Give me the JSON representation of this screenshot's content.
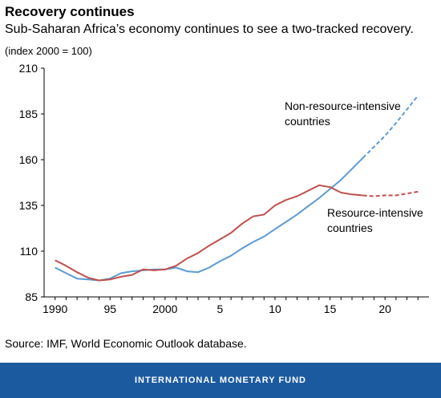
{
  "header": {
    "title": "Recovery continues",
    "subtitle": "Sub-Saharan Africa’s economy continues to see a two-tracked recovery.",
    "units": "(index 2000 = 100)"
  },
  "source": "Source: IMF, World Economic Outlook database.",
  "footer": "INTERNATIONAL MONETARY FUND",
  "chart_data": {
    "type": "line",
    "xlim": [
      1990,
      2023
    ],
    "ylim": [
      85,
      210
    ],
    "x_ticks": [
      1990,
      1995,
      2000,
      2005,
      2010,
      2015,
      2020
    ],
    "x_tick_labels": [
      "1990",
      "95",
      "2000",
      "5",
      "10",
      "15",
      "20"
    ],
    "y_ticks": [
      85,
      110,
      135,
      160,
      185,
      210
    ],
    "y_tick_labels": [
      "85",
      "110",
      "135",
      "160",
      "185",
      "210"
    ],
    "grid": false,
    "projection_start": 2018,
    "series": [
      {
        "name": "Non-resource-intensive countries",
        "label_lines": [
          "Non-resource-intensive",
          "countries"
        ],
        "color": "#5b9bd5",
        "x": [
          1990,
          1991,
          1992,
          1993,
          1994,
          1995,
          1996,
          1997,
          1998,
          1999,
          2000,
          2001,
          2002,
          2003,
          2004,
          2005,
          2006,
          2007,
          2008,
          2009,
          2010,
          2011,
          2012,
          2013,
          2014,
          2015,
          2016,
          2017,
          2018,
          2019,
          2020,
          2021,
          2022,
          2023
        ],
        "values": [
          101,
          98,
          95,
          94.5,
          94,
          95,
          98,
          99,
          99.5,
          100,
          100,
          101,
          99,
          98.5,
          101,
          104.5,
          107.5,
          111.5,
          115,
          118,
          122,
          126,
          130,
          134.5,
          139,
          144,
          149,
          155,
          161,
          167,
          173,
          180,
          187.5,
          195
        ]
      },
      {
        "name": "Resource-intensive countries",
        "label_lines": [
          "Resource-intensive",
          "countries"
        ],
        "color": "#c0504d",
        "x": [
          1990,
          1991,
          1992,
          1993,
          1994,
          1995,
          1996,
          1997,
          1998,
          1999,
          2000,
          2001,
          2002,
          2003,
          2004,
          2005,
          2006,
          2007,
          2008,
          2009,
          2010,
          2011,
          2012,
          2013,
          2014,
          2015,
          2016,
          2017,
          2018,
          2019,
          2020,
          2021,
          2022,
          2023
        ],
        "values": [
          105,
          102,
          98.5,
          95.5,
          94,
          94.5,
          96,
          97,
          100,
          99.5,
          100,
          102,
          106,
          109,
          113,
          116.5,
          120,
          125,
          129,
          130,
          135,
          138,
          140,
          143,
          146,
          145,
          142,
          141,
          140.5,
          140,
          140.5,
          140.5,
          141.5,
          142.5
        ]
      }
    ]
  }
}
